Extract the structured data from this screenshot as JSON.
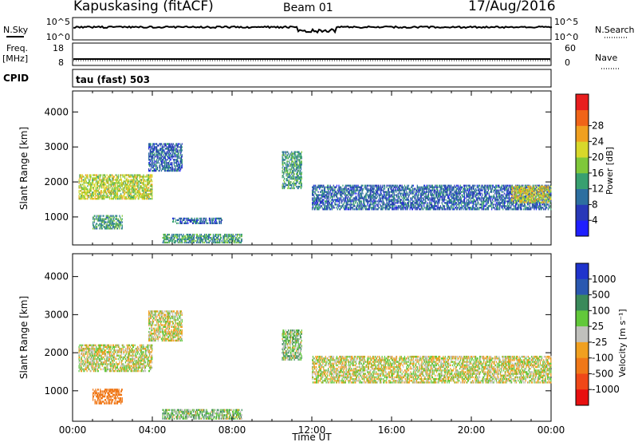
{
  "header": {
    "station": "Kapuskasing (fitACF)",
    "beam": "Beam 01",
    "date": "17/Aug/2016"
  },
  "noise_panel": {
    "left_label": "N.Sky",
    "left_ticks": [
      "10^5",
      "10^0"
    ],
    "right_label": "N.Search",
    "right_ticks": [
      "10^5",
      "10^0"
    ]
  },
  "freq_panel": {
    "left_label_1": "Freq.",
    "left_label_2": "[MHz]",
    "left_ticks": [
      "18",
      "8"
    ],
    "right_label": "Nave",
    "right_ticks": [
      "60",
      "0"
    ]
  },
  "cpid": {
    "label": "CPID",
    "value": "tau (fast) 503"
  },
  "colors": {
    "power_scale": [
      "#1f1fff",
      "#2838b8",
      "#2d6fa0",
      "#38a070",
      "#7fc83a",
      "#d8d82a",
      "#f0a020",
      "#f06418",
      "#e81e1e"
    ],
    "velocity_scale": [
      "#1f33cc",
      "#2a58b0",
      "#3a8a5a",
      "#62c83a",
      "#c0c0bc",
      "#f0a020",
      "#f07818",
      "#f04818",
      "#e81010"
    ]
  },
  "chart_data": [
    {
      "type": "heatmap",
      "title": "",
      "ylabel": "Slant Range [km]",
      "xlabel": "",
      "x_ticks": [
        "00:00",
        "04:00",
        "08:00",
        "12:00",
        "16:00",
        "20:00",
        "00:00"
      ],
      "y_ticks": [
        "1000",
        "2000",
        "3000",
        "4000"
      ],
      "ylim": [
        200,
        4600
      ],
      "xlim_hours": [
        0,
        24
      ],
      "colorbar": {
        "label": "Power [dB]",
        "ticks": [
          "4",
          "8",
          "12",
          "16",
          "20",
          "24",
          "28"
        ],
        "range": [
          0,
          32
        ]
      },
      "features": [
        {
          "t": [
            0.3,
            4.0
          ],
          "range": [
            1500,
            2200
          ],
          "value": 18
        },
        {
          "t": [
            3.8,
            5.5
          ],
          "range": [
            2300,
            3100
          ],
          "value": 8
        },
        {
          "t": [
            1.0,
            2.5
          ],
          "range": [
            650,
            1050
          ],
          "value": 12
        },
        {
          "t": [
            4.5,
            8.5
          ],
          "range": [
            250,
            500
          ],
          "value": 12
        },
        {
          "t": [
            5.0,
            7.5
          ],
          "range": [
            800,
            1000
          ],
          "value": 8
        },
        {
          "t": [
            10.5,
            11.5
          ],
          "range": [
            1800,
            2900
          ],
          "value": 12
        },
        {
          "t": [
            12.0,
            24.0
          ],
          "range": [
            1200,
            1900
          ],
          "value": 8
        },
        {
          "t": [
            22.0,
            24.0
          ],
          "range": [
            1400,
            1900
          ],
          "value": 20
        }
      ]
    },
    {
      "type": "heatmap",
      "title": "",
      "ylabel": "Slant Range [km]",
      "xlabel": "Time UT",
      "x_ticks": [
        "00:00",
        "04:00",
        "08:00",
        "12:00",
        "16:00",
        "20:00",
        "00:00"
      ],
      "y_ticks": [
        "1000",
        "2000",
        "3000",
        "4000"
      ],
      "ylim": [
        200,
        4600
      ],
      "xlim_hours": [
        0,
        24
      ],
      "colorbar": {
        "label": "Velocity [m s⁻¹]",
        "ticks": [
          "1000",
          "500",
          "100",
          "25",
          "-25",
          "-100",
          "-500",
          "-1000"
        ],
        "range": [
          -1000,
          1000
        ]
      },
      "features": [
        {
          "t": [
            0.3,
            4.0
          ],
          "range": [
            1500,
            2200
          ],
          "value": 0
        },
        {
          "t": [
            3.8,
            5.5
          ],
          "range": [
            2300,
            3100
          ],
          "value": 0
        },
        {
          "t": [
            1.0,
            2.5
          ],
          "range": [
            650,
            1050
          ],
          "value": -300
        },
        {
          "t": [
            4.5,
            8.5
          ],
          "range": [
            250,
            500
          ],
          "value": 60
        },
        {
          "t": [
            10.5,
            11.5
          ],
          "range": [
            1800,
            2600
          ],
          "value": 60
        },
        {
          "t": [
            12.0,
            24.0
          ],
          "range": [
            1200,
            1900
          ],
          "value": 0
        }
      ]
    }
  ]
}
